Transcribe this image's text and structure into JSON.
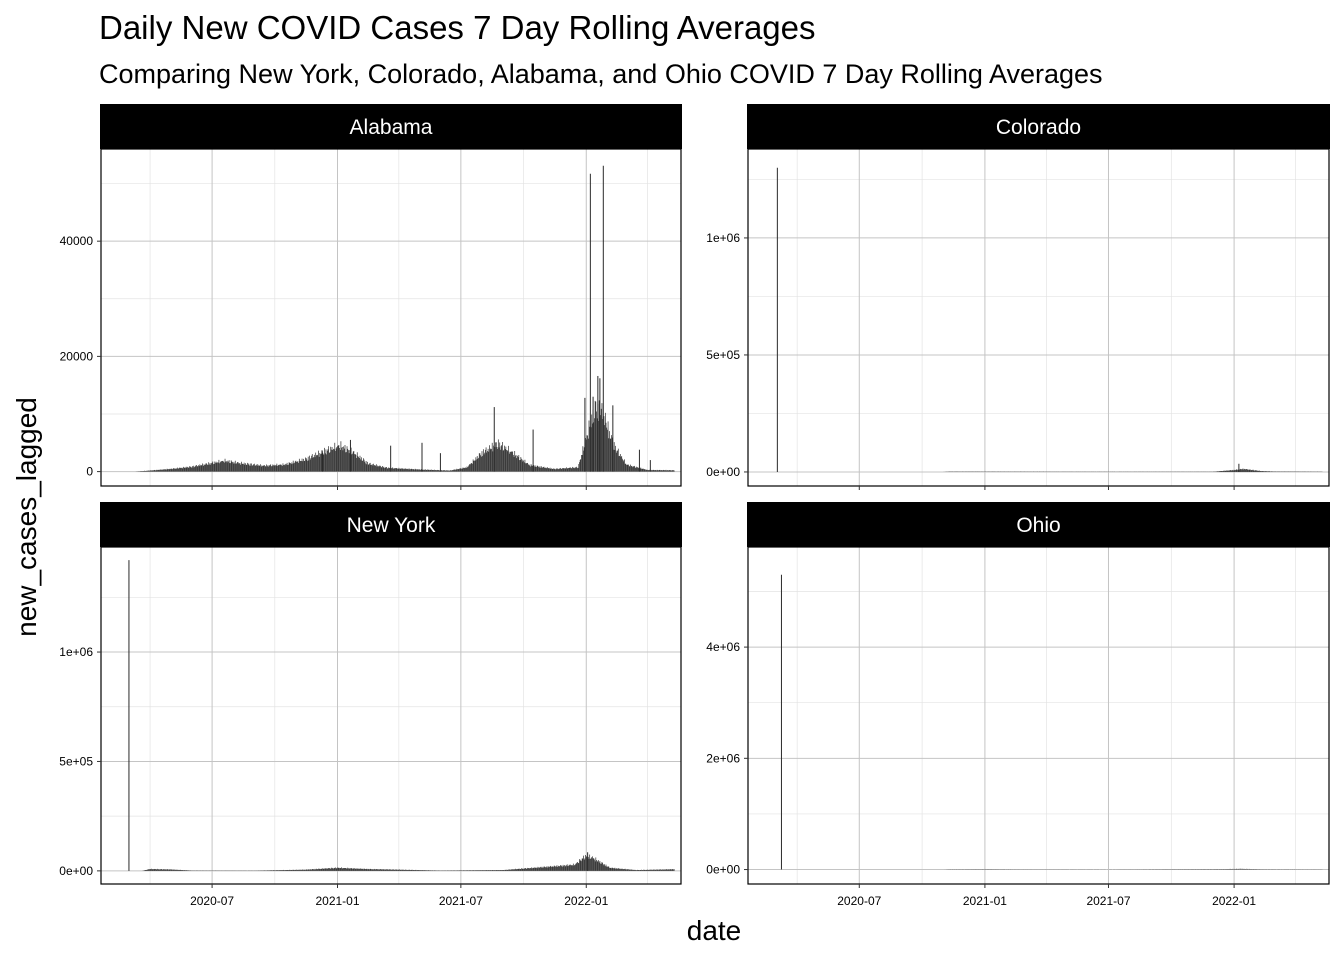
{
  "chart_data": {
    "type": "bar",
    "title": "Daily New COVID Cases 7 Day Rolling Averages",
    "subtitle": "Comparing New York, Colorado, Alabama, and Ohio COVID 7 Day Rolling Averages",
    "xlabel": "date",
    "ylabel": "new_cases_lagged",
    "x_range": [
      "2020-01-20",
      "2022-05-20"
    ],
    "x_ticks": [
      "2020-07",
      "2021-01",
      "2021-07",
      "2022-01"
    ],
    "grid": true,
    "facets": [
      {
        "name": "Alabama",
        "ylim": [
          -2500,
          56000
        ],
        "y_ticks": [
          0,
          20000,
          40000
        ],
        "y_tick_labels": [
          "0",
          "20000",
          "40000"
        ],
        "base_profile": [
          [
            "2020-03-10",
            0
          ],
          [
            "2020-04-01",
            200
          ],
          [
            "2020-05-01",
            500
          ],
          [
            "2020-06-01",
            900
          ],
          [
            "2020-07-01",
            1600
          ],
          [
            "2020-07-20",
            2000
          ],
          [
            "2020-08-15",
            1500
          ],
          [
            "2020-09-15",
            1100
          ],
          [
            "2020-10-15",
            1300
          ],
          [
            "2020-11-15",
            2300
          ],
          [
            "2020-12-15",
            3900
          ],
          [
            "2021-01-05",
            4800
          ],
          [
            "2021-01-25",
            3500
          ],
          [
            "2021-02-15",
            1500
          ],
          [
            "2021-03-15",
            700
          ],
          [
            "2021-05-01",
            400
          ],
          [
            "2021-06-15",
            200
          ],
          [
            "2021-07-10",
            800
          ],
          [
            "2021-08-01",
            3500
          ],
          [
            "2021-08-25",
            5200
          ],
          [
            "2021-09-15",
            3500
          ],
          [
            "2021-10-10",
            1200
          ],
          [
            "2021-11-15",
            500
          ],
          [
            "2021-12-20",
            800
          ],
          [
            "2022-01-05",
            8000
          ],
          [
            "2022-01-15",
            12000
          ],
          [
            "2022-01-25",
            11000
          ],
          [
            "2022-02-10",
            5000
          ],
          [
            "2022-03-01",
            1300
          ],
          [
            "2022-04-01",
            300
          ],
          [
            "2022-05-10",
            250
          ]
        ],
        "spikes": [
          [
            "2020-12-10",
            3300
          ],
          [
            "2021-01-20",
            5500
          ],
          [
            "2021-03-20",
            4500
          ],
          [
            "2021-05-05",
            5000
          ],
          [
            "2021-06-01",
            3200
          ],
          [
            "2021-08-19",
            11200
          ],
          [
            "2021-10-15",
            7300
          ],
          [
            "2021-12-30",
            12800
          ],
          [
            "2022-01-07",
            51700
          ],
          [
            "2022-01-11",
            13000
          ],
          [
            "2022-01-18",
            16600
          ],
          [
            "2022-01-21",
            16200
          ],
          [
            "2022-01-26",
            53100
          ],
          [
            "2022-02-09",
            11500
          ],
          [
            "2022-03-20",
            3800
          ],
          [
            "2022-04-05",
            2000
          ]
        ]
      },
      {
        "name": "Colorado",
        "ylim": [
          -60000,
          1380000
        ],
        "y_ticks": [
          0,
          500000,
          1000000
        ],
        "y_tick_labels": [
          "0e+00",
          "5e+05",
          "1e+06"
        ],
        "base_profile": [
          [
            "2020-11-01",
            0
          ],
          [
            "2020-11-10",
            1500
          ],
          [
            "2021-03-01",
            1200
          ],
          [
            "2021-07-01",
            800
          ],
          [
            "2021-12-01",
            1000
          ],
          [
            "2022-01-01",
            9000
          ],
          [
            "2022-01-15",
            14000
          ],
          [
            "2022-02-10",
            4000
          ],
          [
            "2022-03-01",
            2000
          ],
          [
            "2022-05-10",
            1000
          ]
        ],
        "spikes": [
          [
            "2020-03-03",
            1300000
          ],
          [
            "2022-01-08",
            35000
          ]
        ]
      },
      {
        "name": "New York",
        "ylim": [
          -60000,
          1480000
        ],
        "y_ticks": [
          0,
          500000,
          1000000
        ],
        "y_tick_labels": [
          "0e+00",
          "5e+05",
          "1e+06"
        ],
        "base_profile": [
          [
            "2020-03-20",
            0
          ],
          [
            "2020-04-01",
            9000
          ],
          [
            "2020-05-01",
            7000
          ],
          [
            "2020-06-01",
            1500
          ],
          [
            "2020-09-01",
            1000
          ],
          [
            "2020-11-15",
            6000
          ],
          [
            "2021-01-01",
            15000
          ],
          [
            "2021-02-15",
            9000
          ],
          [
            "2021-04-01",
            6000
          ],
          [
            "2021-06-01",
            1500
          ],
          [
            "2021-09-01",
            4000
          ],
          [
            "2021-12-15",
            30000
          ],
          [
            "2021-12-30",
            70000
          ],
          [
            "2022-01-10",
            65000
          ],
          [
            "2022-02-05",
            15000
          ],
          [
            "2022-03-15",
            4000
          ],
          [
            "2022-05-10",
            8000
          ]
        ],
        "spikes": [
          [
            "2020-03-01",
            1420000
          ],
          [
            "2022-01-03",
            85000
          ]
        ]
      },
      {
        "name": "Ohio",
        "ylim": [
          -260000,
          5800000
        ],
        "y_ticks": [
          0,
          2000000,
          4000000
        ],
        "y_tick_labels": [
          "0e+00",
          "2e+06",
          "4e+06"
        ],
        "base_profile": [
          [
            "2020-11-01",
            0
          ],
          [
            "2020-11-10",
            4000
          ],
          [
            "2021-01-05",
            6000
          ],
          [
            "2021-03-01",
            3000
          ],
          [
            "2021-07-01",
            2000
          ],
          [
            "2021-12-15",
            8000
          ],
          [
            "2022-01-10",
            14000
          ],
          [
            "2022-02-10",
            5000
          ],
          [
            "2022-05-10",
            3000
          ]
        ],
        "spikes": [
          [
            "2020-03-09",
            5300000
          ]
        ]
      }
    ]
  }
}
